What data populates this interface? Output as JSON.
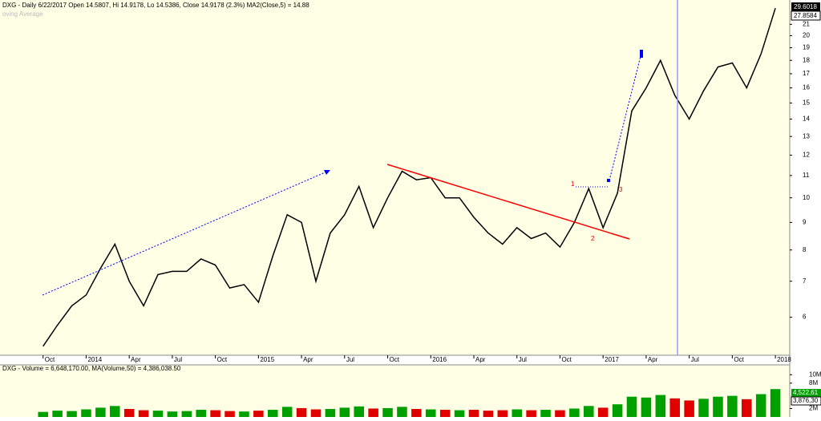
{
  "chart_data": [
    {
      "type": "line",
      "title": "DXG - Daily 6/22/2017 Open 14.5807, Hi 14.9178, Lo 14.5386, Close 14.9178 (2.3%) MA2(Close,5) = 14.88",
      "legend_stub": "oving Average",
      "x": [
        "2013-10",
        "2013-11",
        "2013-12",
        "2014-01",
        "2014-02",
        "2014-03",
        "2014-04",
        "2014-05",
        "2014-06",
        "2014-07",
        "2014-08",
        "2014-09",
        "2014-10",
        "2014-11",
        "2014-12",
        "2015-01",
        "2015-02",
        "2015-03",
        "2015-04",
        "2015-05",
        "2015-06",
        "2015-07",
        "2015-08",
        "2015-09",
        "2015-10",
        "2015-11",
        "2015-12",
        "2016-01",
        "2016-02",
        "2016-03",
        "2016-04",
        "2016-05",
        "2016-06",
        "2016-07",
        "2016-08",
        "2016-09",
        "2016-10",
        "2016-11",
        "2016-12",
        "2017-01",
        "2017-02",
        "2017-03",
        "2017-04",
        "2017-05",
        "2017-06",
        "2017-07",
        "2017-08",
        "2017-09",
        "2017-10",
        "2017-11",
        "2017-12",
        "2018-01"
      ],
      "series": [
        {
          "color": "#000000",
          "values": [
            5.3,
            5.8,
            6.3,
            6.6,
            7.4,
            8.2,
            7.0,
            6.3,
            7.2,
            7.3,
            7.3,
            7.7,
            7.5,
            6.8,
            6.9,
            6.4,
            7.8,
            9.3,
            9.0,
            7.0,
            8.6,
            9.3,
            10.5,
            8.8,
            10.0,
            11.2,
            10.8,
            10.9,
            10.0,
            10.0,
            9.2,
            8.6,
            8.2,
            8.8,
            8.4,
            8.6,
            8.1,
            9.0,
            10.4,
            8.8,
            10.2,
            14.5,
            16.0,
            18.0,
            15.5,
            14.0,
            15.8,
            17.5,
            17.8,
            16.0,
            18.5,
            22.5
          ]
        }
      ],
      "log": true,
      "xlim": [
        "2013-07",
        "2018-02"
      ],
      "xticks": [
        {
          "value": "2013-10",
          "label": "Oct"
        },
        {
          "value": "2014-01",
          "label": "2014"
        },
        {
          "value": "2014-04",
          "label": "Apr"
        },
        {
          "value": "2014-07",
          "label": "Jul"
        },
        {
          "value": "2014-10",
          "label": "Oct"
        },
        {
          "value": "2015-01",
          "label": "2015"
        },
        {
          "value": "2015-04",
          "label": "Apr"
        },
        {
          "value": "2015-07",
          "label": "Jul"
        },
        {
          "value": "2015-10",
          "label": "Oct"
        },
        {
          "value": "2016-01",
          "label": "2016"
        },
        {
          "value": "2016-04",
          "label": "Apr"
        },
        {
          "value": "2016-07",
          "label": "Jul"
        },
        {
          "value": "2016-10",
          "label": "Oct"
        },
        {
          "value": "2017-01",
          "label": "2017"
        },
        {
          "value": "2017-04",
          "label": "Apr"
        },
        {
          "value": "2017-07",
          "label": "Jul"
        },
        {
          "value": "2017-10",
          "label": "Oct"
        },
        {
          "value": "2018-01",
          "label": "2018"
        }
      ],
      "ylim": [
        5.1,
        23.3
      ],
      "yticks": [
        6,
        7,
        8,
        9,
        10,
        11,
        12,
        13,
        14,
        15,
        16,
        17,
        18,
        19,
        20,
        21
      ],
      "price_labels": [
        "29.6018",
        "27.8584"
      ],
      "wave_labels": [
        "1",
        "2",
        "3"
      ]
    },
    {
      "type": "bar",
      "title": "DXG - Volume = 6,648,170.00, MA(Volume,50) = 4,386,038.50",
      "values": [
        1200000,
        1500000,
        1400000,
        1800000,
        2200000,
        2600000,
        1900000,
        1600000,
        1500000,
        1300000,
        1400000,
        1700000,
        1600000,
        1400000,
        1300000,
        1500000,
        1700000,
        2400000,
        2100000,
        1800000,
        1900000,
        2200000,
        2500000,
        2000000,
        2100000,
        2400000,
        1900000,
        1800000,
        1700000,
        1600000,
        1700000,
        1500000,
        1600000,
        1800000,
        1600000,
        1700000,
        1600000,
        2000000,
        2600000,
        2200000,
        3000000,
        4800000,
        4600000,
        5200000,
        4400000,
        3900000,
        4300000,
        4800000,
        5000000,
        4200000,
        5400000,
        6600000
      ],
      "colors": {
        "up": "#00a000",
        "down": "#e00000"
      },
      "ylim": [
        0,
        11000000
      ],
      "yticks": [
        {
          "value": 2000000,
          "label": "2M"
        },
        {
          "value": 8000000,
          "label": "8M"
        },
        {
          "value": 10000000,
          "label": "10M"
        }
      ],
      "value_boxes": [
        "4,522,61",
        "3,876,30"
      ]
    }
  ]
}
